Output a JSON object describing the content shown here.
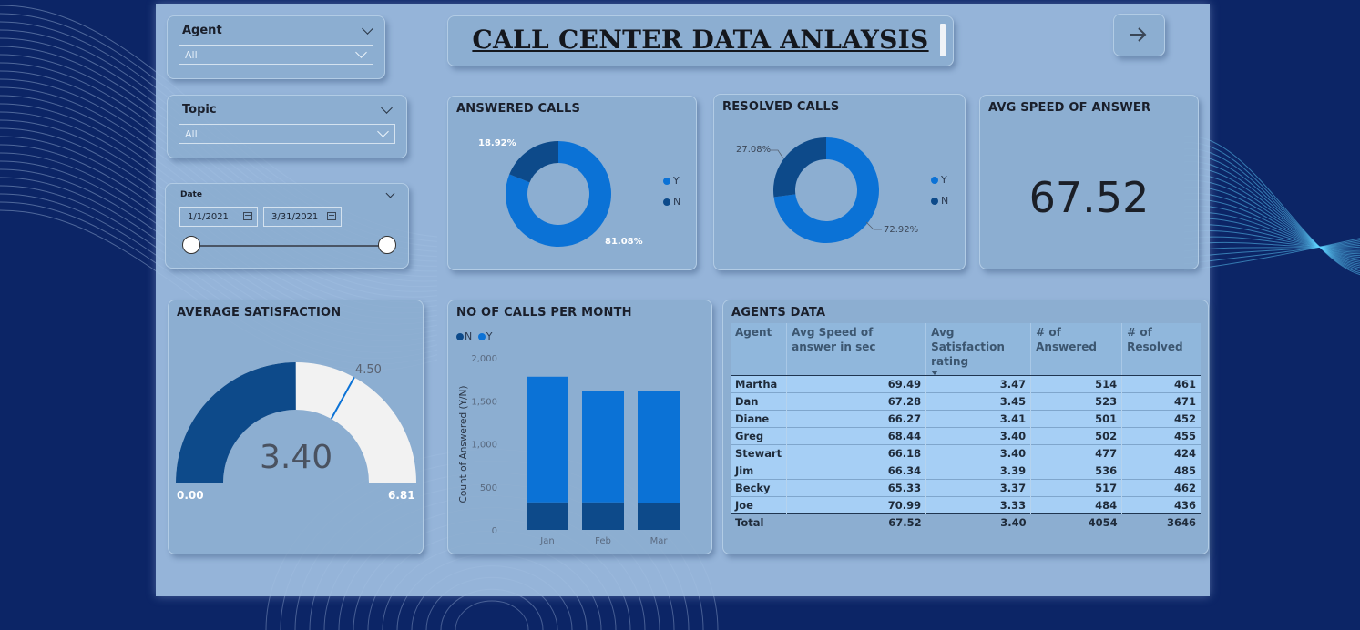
{
  "colors": {
    "y": "#0b72d6",
    "n": "#0d4a8a",
    "gauge_fill": "#0d4a8a",
    "gauge_bg": "#f2f2f2",
    "target": "#0b72d6"
  },
  "slicers": {
    "agent": {
      "label": "Agent",
      "value": "All"
    },
    "topic": {
      "label": "Topic",
      "value": "All"
    },
    "date": {
      "label": "Date",
      "start": "1/1/2021",
      "end": "3/31/2021",
      "range_start_fraction": 0,
      "range_end_fraction": 1
    }
  },
  "title": "CALL CENTER DATA ANLAYSIS",
  "nav": {
    "icon": "arrow-right-icon"
  },
  "answered": {
    "title": "ANSWERED CALLS",
    "chart_data": {
      "type": "pie",
      "categories": [
        "Y",
        "N"
      ],
      "values": [
        81.08,
        18.92
      ],
      "labels": [
        "81.08%",
        "18.92%"
      ]
    }
  },
  "resolved": {
    "title": "RESOLVED CALLS",
    "chart_data": {
      "type": "pie",
      "categories": [
        "Y",
        "N"
      ],
      "values": [
        72.92,
        27.08
      ],
      "labels": [
        "72.92%",
        "27.08%"
      ]
    }
  },
  "legend": {
    "y": "Y",
    "n": "N"
  },
  "avg_speed": {
    "title": "AVG SPEED OF ANSWER",
    "value": "67.52"
  },
  "satisfaction": {
    "title": "AVERAGE SATISFACTION",
    "value": "3.40",
    "min": "0.00",
    "max": "6.81",
    "target": "4.50",
    "value_num": 3.4,
    "min_num": 0,
    "max_num": 6.81,
    "target_num": 4.5
  },
  "monthly": {
    "title": "NO OF CALLS PER MONTH",
    "legend_n": "N",
    "legend_y": "Y",
    "chart_data": {
      "type": "bar",
      "categories": [
        "Jan",
        "Feb",
        "Mar"
      ],
      "series": [
        {
          "name": "N",
          "values": [
            320,
            320,
            310
          ]
        },
        {
          "name": "Y",
          "values": [
            1460,
            1290,
            1300
          ]
        }
      ],
      "stacked": true,
      "ylabel": "Count of Answered (Y/N)",
      "ylim": [
        0,
        2000
      ],
      "yticks": [
        "0",
        "500",
        "1,000",
        "1,500",
        "2,000"
      ],
      "ytick_values": [
        0,
        500,
        1000,
        1500,
        2000
      ]
    }
  },
  "agents": {
    "title": "AGENTS DATA",
    "columns": [
      "Agent",
      "Avg Speed of answer in sec",
      "Avg Satisfaction rating",
      "# of Answered",
      "# of Resolved"
    ],
    "rows": [
      [
        "Martha",
        "69.49",
        "3.47",
        "514",
        "461"
      ],
      [
        "Dan",
        "67.28",
        "3.45",
        "523",
        "471"
      ],
      [
        "Diane",
        "66.27",
        "3.41",
        "501",
        "452"
      ],
      [
        "Greg",
        "68.44",
        "3.40",
        "502",
        "455"
      ],
      [
        "Stewart",
        "66.18",
        "3.40",
        "477",
        "424"
      ],
      [
        "Jim",
        "66.34",
        "3.39",
        "536",
        "485"
      ],
      [
        "Becky",
        "65.33",
        "3.37",
        "517",
        "462"
      ],
      [
        "Joe",
        "70.99",
        "3.33",
        "484",
        "436"
      ]
    ],
    "total": [
      "Total",
      "67.52",
      "3.40",
      "4054",
      "3646"
    ]
  }
}
